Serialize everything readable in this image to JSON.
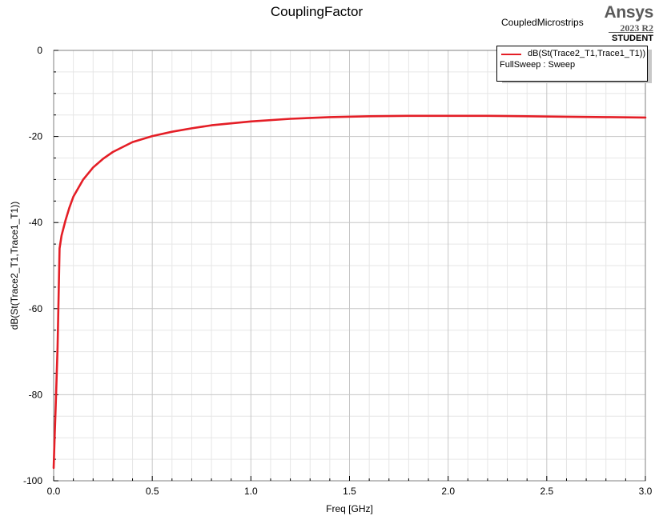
{
  "report": {
    "title": "CouplingFactor",
    "design_name": "CoupledMicrostrips"
  },
  "branding": {
    "name": "Ansys",
    "version": "2023 R2",
    "edition": "STUDENT"
  },
  "legend": {
    "series_label": "dB(St(Trace2_T1,Trace1_T1))",
    "sweep_label": "FullSweep : Sweep"
  },
  "colors": {
    "series": "#e41e26",
    "grid_major": "#c6c6c6",
    "grid_minor": "#e6e6e6"
  },
  "chart_data": {
    "type": "line",
    "title": "CouplingFactor",
    "xlabel": "Freq [GHz]",
    "ylabel": "dB(St(Trace2_T1,Trace1_T1))",
    "xlim": [
      0,
      3.0
    ],
    "ylim": [
      -100,
      0
    ],
    "x_ticks": [
      0.0,
      0.5,
      1.0,
      1.5,
      2.0,
      2.5,
      3.0
    ],
    "x_tick_labels": [
      "0.0",
      "0.5",
      "1.0",
      "1.5",
      "2.0",
      "2.5",
      "3.0"
    ],
    "y_ticks": [
      0,
      -20,
      -40,
      -60,
      -80,
      -100
    ],
    "y_tick_labels": [
      "0",
      "-20",
      "-40",
      "-60",
      "-80",
      "-100"
    ],
    "grid": true,
    "legend_position": "top-right",
    "series": [
      {
        "name": "dB(St(Trace2_T1,Trace1_T1))",
        "x": [
          0.0,
          0.005,
          0.01,
          0.015,
          0.02,
          0.03,
          0.04,
          0.06,
          0.08,
          0.1,
          0.15,
          0.2,
          0.25,
          0.3,
          0.4,
          0.5,
          0.6,
          0.7,
          0.8,
          1.0,
          1.2,
          1.4,
          1.6,
          1.8,
          2.0,
          2.2,
          2.4,
          2.6,
          2.8,
          3.0
        ],
        "y": [
          -97,
          -90,
          -83,
          -76,
          -69,
          -46,
          -43,
          -39.5,
          -36.5,
          -34,
          -30,
          -27.2,
          -25.2,
          -23.6,
          -21.3,
          -19.9,
          -18.9,
          -18.1,
          -17.4,
          -16.5,
          -15.9,
          -15.5,
          -15.3,
          -15.2,
          -15.2,
          -15.2,
          -15.3,
          -15.4,
          -15.5,
          -15.6
        ]
      }
    ]
  }
}
